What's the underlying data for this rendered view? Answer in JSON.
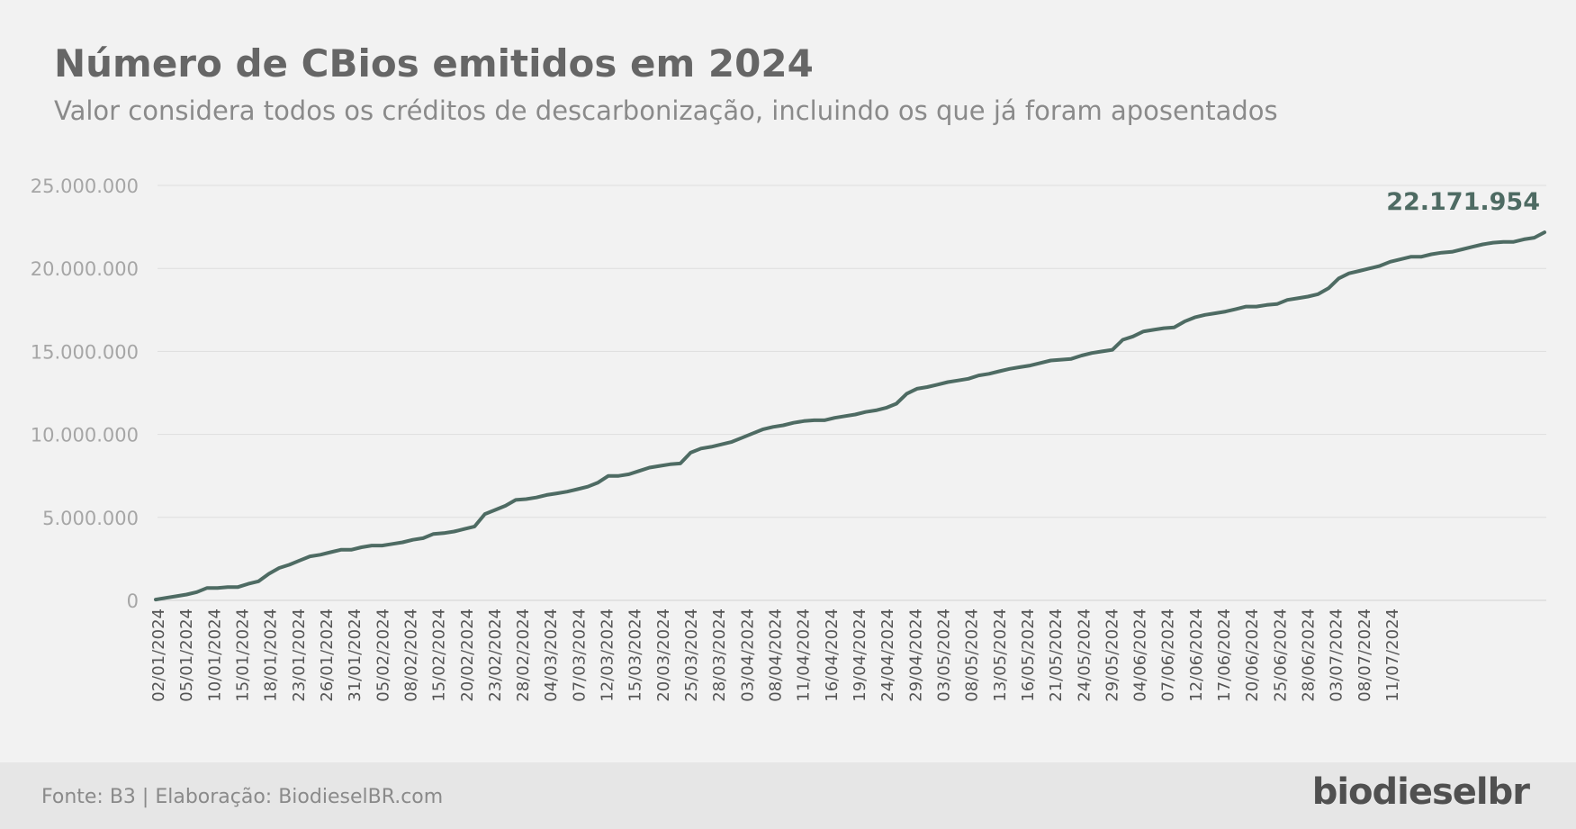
{
  "header": {
    "title": "Número de CBios emitidos em 2024",
    "subtitle": "Valor considera todos os créditos de descarbonização, incluindo os que já foram aposentados"
  },
  "footer": {
    "source": "Fonte: B3 | Elaboração: BiodieselBR.com",
    "logo": "biodieselbr"
  },
  "colors": {
    "line": "#4e6b63",
    "grid": "#dedede",
    "axis_text": "#a6a6a6",
    "tick_text": "#555555"
  },
  "chart_data": {
    "type": "line",
    "title": "Número de CBios emitidos em 2024",
    "subtitle": "Valor considera todos os créditos de descarbonização, incluindo os que já foram aposentados",
    "ylim": [
      0,
      25000000
    ],
    "yticks": [
      {
        "value": 0,
        "label": "0"
      },
      {
        "value": 5000000,
        "label": "5.000.000"
      },
      {
        "value": 10000000,
        "label": "10.000.000"
      },
      {
        "value": 15000000,
        "label": "15.000.000"
      },
      {
        "value": 20000000,
        "label": "20.000.000"
      },
      {
        "value": 25000000,
        "label": "25.000.000"
      }
    ],
    "grid": true,
    "x_tick_labels": [
      "02/01/2024",
      "05/01/2024",
      "10/01/2024",
      "15/01/2024",
      "18/01/2024",
      "23/01/2024",
      "26/01/2024",
      "31/01/2024",
      "05/02/2024",
      "08/02/2024",
      "15/02/2024",
      "20/02/2024",
      "23/02/2024",
      "28/02/2024",
      "04/03/2024",
      "07/03/2024",
      "12/03/2024",
      "15/03/2024",
      "20/03/2024",
      "25/03/2024",
      "28/03/2024",
      "03/04/2024",
      "08/04/2024",
      "11/04/2024",
      "16/04/2024",
      "19/04/2024",
      "24/04/2024",
      "29/04/2024",
      "03/05/2024",
      "08/05/2024",
      "13/05/2024",
      "16/05/2024",
      "21/05/2024",
      "24/05/2024",
      "29/05/2024",
      "04/06/2024",
      "07/06/2024",
      "12/06/2024",
      "17/06/2024",
      "20/06/2024",
      "25/06/2024",
      "28/06/2024",
      "03/07/2024",
      "08/07/2024",
      "11/07/2024"
    ],
    "series": [
      {
        "values": [
          50000,
          150000,
          250000,
          350000,
          500000,
          750000,
          750000,
          800000,
          800000,
          1000000,
          1150000,
          1600000,
          1950000,
          2150000,
          2400000,
          2650000,
          2750000,
          2900000,
          3050000,
          3050000,
          3200000,
          3300000,
          3300000,
          3400000,
          3500000,
          3650000,
          3750000,
          4000000,
          4050000,
          4150000,
          4300000,
          4450000,
          5200000,
          5450000,
          5700000,
          6050000,
          6100000,
          6200000,
          6350000,
          6450000,
          6550000,
          6700000,
          6850000,
          7100000,
          7500000,
          7500000,
          7600000,
          7800000,
          8000000,
          8100000,
          8200000,
          8250000,
          8900000,
          9150000,
          9250000,
          9400000,
          9550000,
          9800000,
          10050000,
          10300000,
          10450000,
          10550000,
          10700000,
          10800000,
          10850000,
          10850000,
          11000000,
          11100000,
          11200000,
          11350000,
          11450000,
          11600000,
          11850000,
          12450000,
          12750000,
          12850000,
          13000000,
          13150000,
          13250000,
          13350000,
          13550000,
          13650000,
          13800000,
          13950000,
          14050000,
          14150000,
          14300000,
          14450000,
          14500000,
          14550000,
          14750000,
          14900000,
          15000000,
          15100000,
          15700000,
          15900000,
          16200000,
          16300000,
          16400000,
          16450000,
          16800000,
          17050000,
          17200000,
          17300000,
          17400000,
          17550000,
          17700000,
          17700000,
          17800000,
          17850000,
          18100000,
          18200000,
          18300000,
          18450000,
          18800000,
          19400000,
          19700000,
          19850000,
          20000000,
          20150000,
          20400000,
          20550000,
          20700000,
          20700000,
          20850000,
          20950000,
          21000000,
          21150000,
          21300000,
          21450000,
          21550000,
          21600000,
          21600000,
          21750000,
          21850000,
          22171954
        ]
      }
    ],
    "end_label": "22.171.954"
  }
}
